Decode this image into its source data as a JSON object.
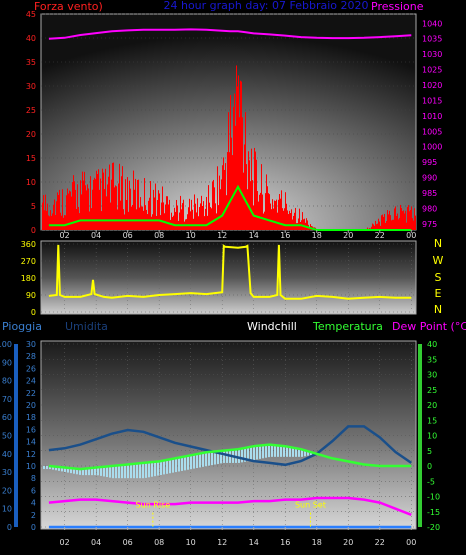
{
  "header": {
    "left_label": "Forza vento)",
    "center_label": "24 hour graph day: 07 Febbraio 2020",
    "right_label": "Pressione"
  },
  "colors": {
    "wind": "#ff0000",
    "gust_base": "#00ff00",
    "pressure": "#ff00ff",
    "direction": "#ffff00",
    "humidity": "#1a4f8a",
    "windchill": "#aaddee",
    "temperature": "#33ff33",
    "dewpoint": "#ff00ff",
    "rain": "#2a7fff",
    "axis_left": "#ff2020",
    "axis_right": "#ff00ff",
    "axis_blue": "#3a7fd0",
    "axis_green": "#33ff33"
  },
  "x_axis_labels": [
    "02",
    "04",
    "06",
    "08",
    "10",
    "12",
    "14",
    "16",
    "18",
    "20",
    "22",
    "00"
  ],
  "direction_letters": [
    "N",
    "W",
    "S",
    "E",
    "N"
  ],
  "bottom_header": {
    "rain": "Pioggia",
    "humidity": "Umidita",
    "windchill": "Windchill",
    "temperature": "Temperatura",
    "dewpoint": "Dew Point (°C)"
  },
  "sun_rise": "Sun Rise",
  "sun_set": "Sun Set",
  "chart_data": [
    {
      "type": "line",
      "title": "24 hour graph day: 07 Febbraio 2020",
      "xlabel": "",
      "ylabel": "Forza vento)",
      "y2label": "Pressione",
      "ylim": [
        0,
        45
      ],
      "yticks": [
        0,
        5,
        10,
        15,
        20,
        25,
        30,
        35,
        40,
        45
      ],
      "y2lim": [
        973,
        1043
      ],
      "y2ticks": [
        975,
        980,
        985,
        990,
        995,
        1000,
        1005,
        1010,
        1015,
        1020,
        1025,
        1030,
        1035,
        1040
      ],
      "xlim": [
        0.5,
        24.3
      ],
      "x": [
        1,
        2,
        3,
        4,
        5,
        6,
        7,
        8,
        9,
        10,
        11,
        12,
        12.5,
        13,
        13.5,
        14,
        15,
        16,
        17,
        18,
        19,
        20,
        21,
        22,
        23,
        24
      ],
      "series": [
        {
          "name": "Forza vento)",
          "values": [
            6,
            7,
            9,
            9,
            10,
            9,
            8,
            7,
            5,
            5,
            6,
            12,
            22,
            31,
            22,
            12,
            7,
            6,
            3,
            0,
            0,
            0,
            0,
            2,
            4,
            4
          ]
        },
        {
          "name": "",
          "values": [
            1,
            1,
            2,
            2,
            2,
            2,
            2,
            2,
            1,
            1,
            1,
            3,
            6,
            9,
            6,
            3,
            2,
            1,
            1,
            0,
            0,
            0,
            0,
            0,
            0,
            0
          ]
        },
        {
          "name": "Pressione",
          "values": [
            1035,
            1035.3,
            1036.2,
            1036.8,
            1037.4,
            1037.7,
            1037.9,
            1037.9,
            1037.9,
            1038,
            1037.9,
            1037.6,
            1037.4,
            1037.4,
            1037.1,
            1036.7,
            1036.4,
            1036,
            1035.5,
            1035.3,
            1035.2,
            1035.2,
            1035.3,
            1035.5,
            1035.8,
            1036.1
          ]
        }
      ]
    },
    {
      "type": "line",
      "title": "",
      "xlabel": "",
      "ylabel": "",
      "ylim": [
        0,
        360
      ],
      "yticks": [
        0,
        90,
        180,
        270,
        360
      ],
      "xlim": [
        0.5,
        24.3
      ],
      "x": [
        1,
        1.5,
        1.6,
        1.7,
        2,
        3,
        3.7,
        3.8,
        3.9,
        4.5,
        5,
        6,
        7,
        8,
        9,
        10,
        11,
        12,
        12.1,
        12.2,
        13,
        13.5,
        13.6,
        13.8,
        14,
        15,
        15.5,
        15.6,
        15.7,
        16,
        17,
        18,
        19,
        20,
        21,
        22,
        23,
        24
      ],
      "series": [
        {
          "name": "",
          "values": [
            85,
            90,
            355,
            90,
            80,
            80,
            95,
            170,
            95,
            80,
            75,
            85,
            80,
            90,
            95,
            100,
            95,
            105,
            350,
            345,
            340,
            345,
            350,
            100,
            80,
            80,
            90,
            355,
            90,
            70,
            70,
            85,
            80,
            70,
            75,
            80,
            75,
            75
          ]
        }
      ]
    },
    {
      "type": "line",
      "title": "",
      "xlabel": "",
      "ylabel": "Pioggia",
      "ylim": [
        0,
        100
      ],
      "yticks": [
        0,
        10,
        20,
        30,
        40,
        50,
        60,
        70,
        80,
        90,
        100
      ],
      "y2label": "Umidita",
      "y2lim": [
        0,
        30
      ],
      "y2ticks": [
        0,
        2,
        4,
        6,
        8,
        10,
        12,
        14,
        16,
        18,
        20,
        22,
        24,
        26,
        28,
        30
      ],
      "y3label": "Dew Point (°C)",
      "y3lim": [
        -20,
        40
      ],
      "y3ticks": [
        -20,
        -15,
        -10,
        -5,
        0,
        5,
        10,
        15,
        20,
        25,
        30,
        35,
        40
      ],
      "xlim": [
        0.5,
        24.3
      ],
      "x": [
        1,
        2,
        3,
        4,
        5,
        6,
        7,
        8,
        9,
        10,
        11,
        12,
        13,
        14,
        15,
        16,
        17,
        18,
        19,
        20,
        21,
        22,
        23,
        24
      ],
      "sun_rise_x": 7.6,
      "sun_set_x": 17.6,
      "series": [
        {
          "name": "Umidita",
          "values": [
            42,
            43,
            45,
            48,
            51,
            53,
            52,
            49,
            46,
            44,
            42,
            40,
            38,
            36,
            35,
            34,
            36,
            40,
            47,
            55,
            55,
            49,
            41,
            35
          ]
        },
        {
          "name": "Windchill",
          "values": [
            -1,
            -2,
            -3,
            -3,
            -4,
            -4,
            -4,
            -3,
            -2,
            -1,
            0,
            1,
            1,
            2,
            3,
            3,
            3,
            4,
            4,
            3,
            2,
            1,
            0,
            0
          ]
        },
        {
          "name": "Temperatura",
          "values": [
            0,
            -0.5,
            -1,
            -0.5,
            0,
            0.5,
            1,
            1.5,
            2.5,
            3.5,
            4.5,
            5,
            5.5,
            6.5,
            7,
            6.5,
            5.5,
            4,
            2.5,
            1.5,
            0.5,
            0,
            0,
            0
          ]
        },
        {
          "name": "Dew Point (°C)",
          "values": [
            -12,
            -11.5,
            -11,
            -11,
            -11.5,
            -12,
            -12.5,
            -12.5,
            -12.5,
            -12,
            -12,
            -12,
            -12,
            -11.5,
            -11.5,
            -11,
            -11,
            -10.5,
            -10.5,
            -10.5,
            -11,
            -12,
            -14,
            -16
          ]
        },
        {
          "name": "Pioggia",
          "values": [
            0,
            0,
            0,
            0,
            0,
            0,
            0,
            0,
            0,
            0,
            0,
            0,
            0,
            0,
            0,
            0,
            0,
            0,
            0,
            0,
            0,
            0,
            0,
            0
          ]
        }
      ]
    }
  ]
}
